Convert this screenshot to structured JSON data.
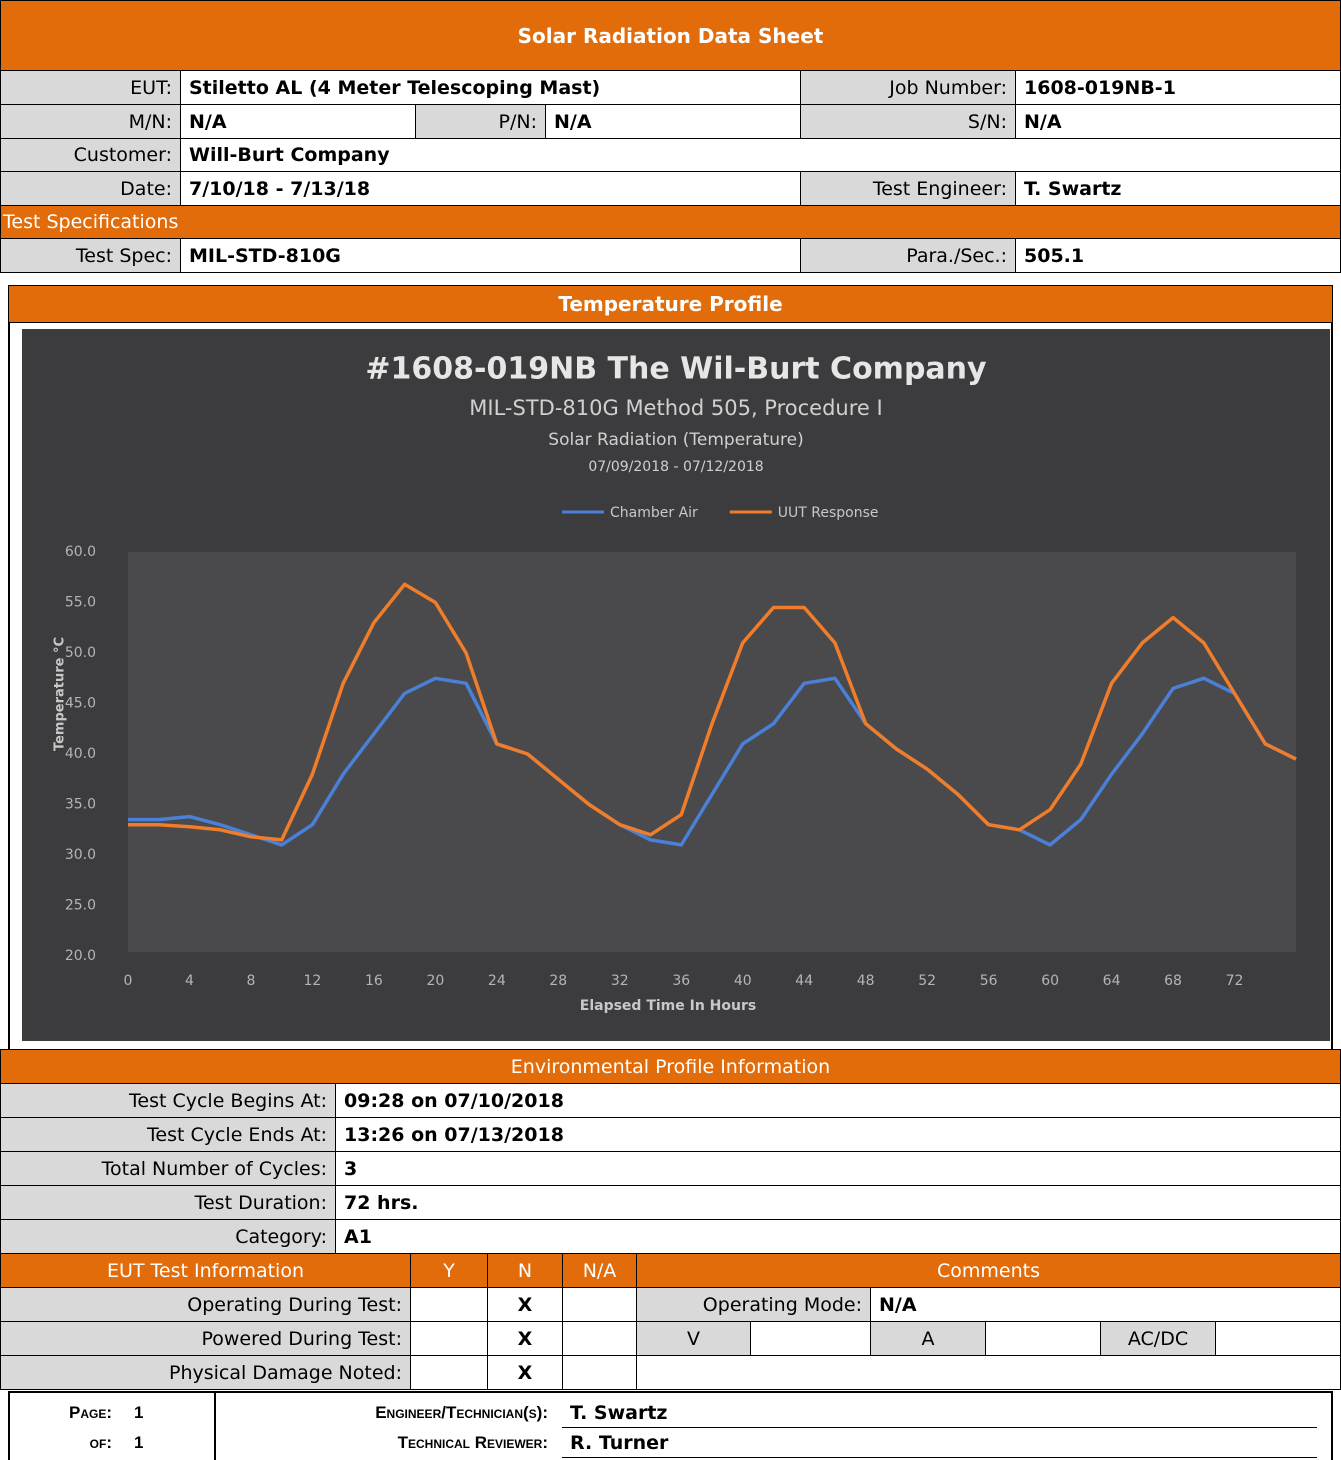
{
  "header": {
    "title": "Solar Radiation Data Sheet"
  },
  "info": {
    "eut": {
      "label": "EUT:",
      "value": "Stiletto AL (4 Meter Telescoping Mast)"
    },
    "job_number": {
      "label": "Job Number:",
      "value": "1608-019NB-1"
    },
    "mn": {
      "label": "M/N:",
      "value": "N/A"
    },
    "pn": {
      "label": "P/N:",
      "value": "N/A"
    },
    "sn": {
      "label": "S/N:",
      "value": "N/A"
    },
    "customer": {
      "label": "Customer:",
      "value": "Will-Burt Company"
    },
    "date": {
      "label": "Date:",
      "value": "7/10/18 - 7/13/18"
    },
    "test_engineer": {
      "label": "Test Engineer:",
      "value": "T. Swartz"
    }
  },
  "specs": {
    "title": "Test Specifications",
    "test_spec": {
      "label": "Test Spec:",
      "value": "MIL-STD-810G"
    },
    "para": {
      "label": "Para./Sec.:",
      "value": "505.1"
    }
  },
  "profile_title": "Temperature Profile",
  "chart_data": {
    "type": "line",
    "title": "#1608-019NB The Wil-Burt Company",
    "subtitle": [
      "MIL-STD-810G Method 505, Procedure I",
      "Solar Radiation (Temperature)",
      "07/09/2018 - 07/12/2018"
    ],
    "x_label": "Elapsed Time In Hours",
    "y_label": "Temperature °C",
    "legend": "top",
    "grid": false,
    "x": [
      0,
      2,
      4,
      6,
      8,
      10,
      12,
      14,
      16,
      18,
      20,
      22,
      24,
      26,
      28,
      30,
      32,
      34,
      36,
      38,
      40,
      42,
      44,
      46,
      48,
      50,
      52,
      54,
      56,
      58,
      60,
      62,
      64,
      66,
      68,
      70,
      72,
      74,
      76
    ],
    "series": [
      {
        "name": "Chamber Air",
        "color": "#4a80d8",
        "values": [
          33.5,
          33.5,
          33.8,
          33,
          32,
          31,
          33,
          38,
          42,
          46,
          47.5,
          47,
          41,
          40,
          37.5,
          35,
          33,
          31.5,
          31,
          36,
          41,
          43,
          47,
          47.5,
          43,
          40.5,
          38.5,
          36,
          33,
          32.5,
          31,
          33.5,
          38,
          42,
          46.5,
          47.5,
          46,
          41,
          39.5
        ]
      },
      {
        "name": "UUT Response",
        "color": "#f07d2a",
        "values": [
          33,
          33,
          32.8,
          32.5,
          31.8,
          31.5,
          38,
          47,
          53,
          56.8,
          55,
          50,
          41,
          40,
          37.5,
          35,
          33,
          32,
          34,
          43,
          51,
          54.5,
          54.5,
          51,
          43,
          40.5,
          38.5,
          36,
          33,
          32.5,
          34.5,
          39,
          47,
          51,
          53.5,
          51,
          46,
          41,
          39.5
        ]
      }
    ],
    "xlim": [
      0,
      76
    ],
    "xticks": [
      0,
      4,
      8,
      12,
      16,
      20,
      24,
      28,
      32,
      36,
      40,
      44,
      48,
      52,
      56,
      60,
      64,
      68,
      72
    ],
    "ylim": [
      20,
      60
    ],
    "yticks": [
      {
        "value": 20,
        "label": "20.0"
      },
      {
        "value": 25,
        "label": "25.0"
      },
      {
        "value": 30,
        "label": "30.0"
      },
      {
        "value": 35,
        "label": "35.0"
      },
      {
        "value": 40,
        "label": "40.0"
      },
      {
        "value": 45,
        "label": "45.0"
      },
      {
        "value": 50,
        "label": "50.0"
      },
      {
        "value": 55,
        "label": "55.0"
      },
      {
        "value": 60,
        "label": "60.0"
      }
    ]
  },
  "environment": {
    "title": "Environmental Profile Information",
    "rows": [
      {
        "label": "Test Cycle Begins At:",
        "value": "09:28 on 07/10/2018"
      },
      {
        "label": "Test Cycle Ends At:",
        "value": "13:26 on 07/13/2018"
      },
      {
        "label": "Total Number of Cycles:",
        "value": "3"
      },
      {
        "label": "Test Duration:",
        "value": "72 hrs."
      },
      {
        "label": "Category:",
        "value": "A1"
      }
    ]
  },
  "eut_test": {
    "headers": [
      "EUT Test Information",
      "Y",
      "N",
      "N/A",
      "Comments"
    ],
    "rows": [
      {
        "label": "Operating During Test:",
        "n": "X"
      },
      {
        "label": "Powered During Test:",
        "n": "X"
      },
      {
        "label": "Physical Damage Noted:",
        "n": "X"
      }
    ],
    "operating_mode": {
      "label": "Operating Mode:",
      "value": "N/A"
    },
    "power": [
      "V",
      "A",
      "AC/DC"
    ]
  },
  "footer": {
    "page": {
      "label": "Page:",
      "value": "1"
    },
    "of": {
      "label": "of:",
      "value": "1"
    },
    "engineer": {
      "label": "Engineer/Technician(s):",
      "value": "T. Swartz"
    },
    "reviewer": {
      "label": "Technical Reviewer:",
      "value": "R. Turner"
    }
  }
}
